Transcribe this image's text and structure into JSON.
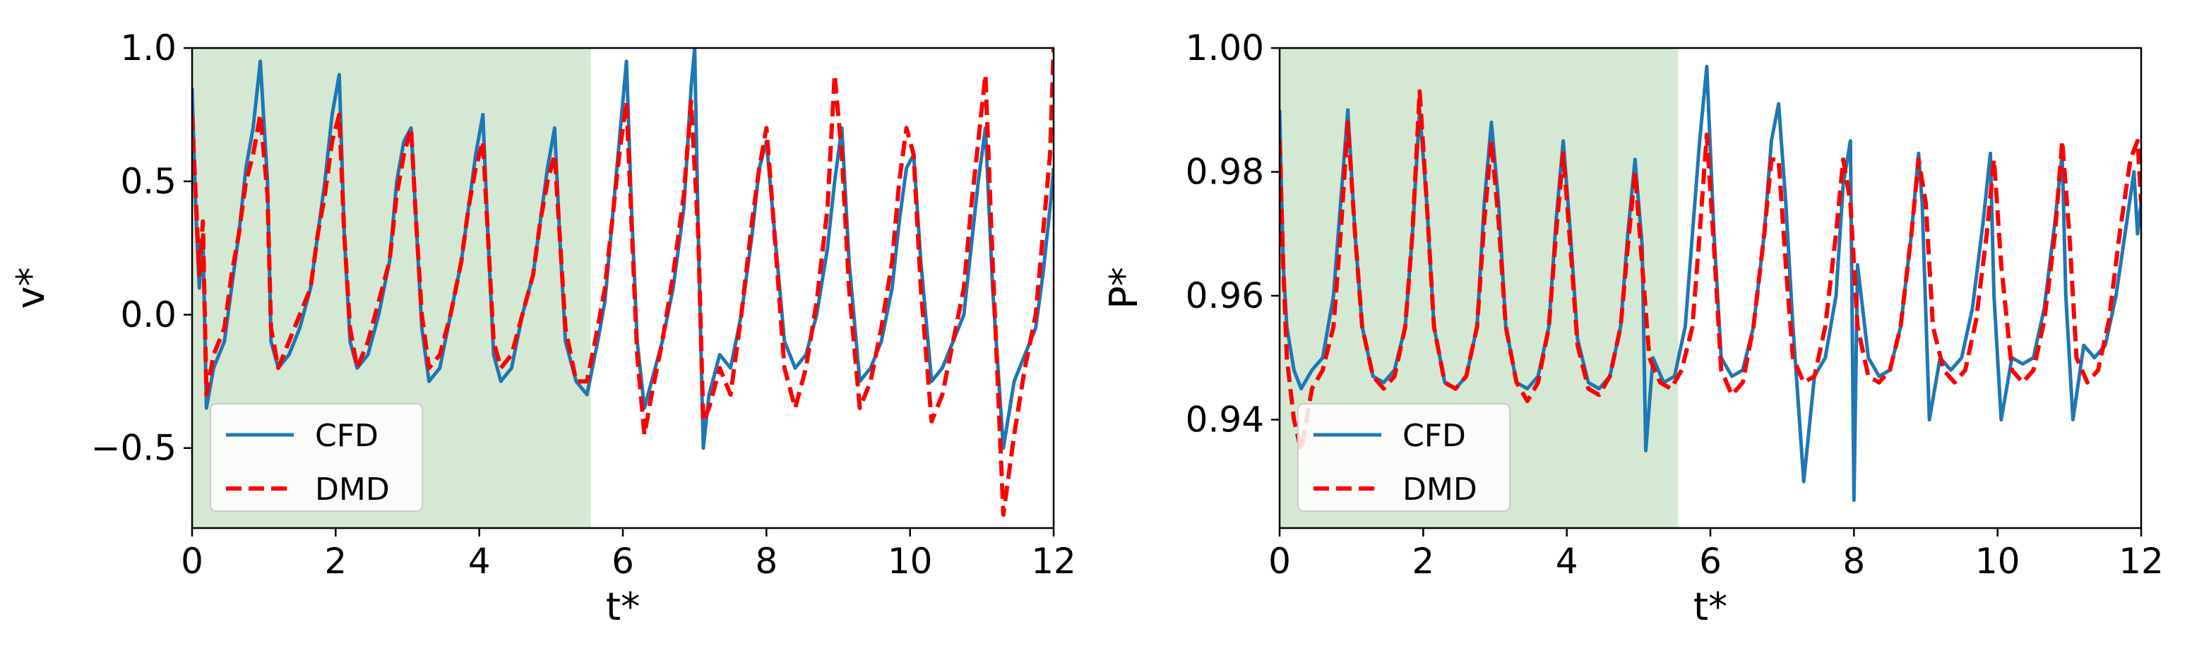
{
  "chart_data": [
    {
      "type": "line",
      "xlabel": "t*",
      "ylabel": "v*",
      "xlim": [
        0,
        12
      ],
      "ylim": [
        -0.8,
        1.0
      ],
      "xticks": [
        0,
        2,
        4,
        6,
        8,
        10,
        12
      ],
      "xtick_labels": [
        "0",
        "2",
        "4",
        "6",
        "8",
        "10",
        "12"
      ],
      "yticks": [
        -0.5,
        0.0,
        0.5,
        1.0
      ],
      "ytick_labels": [
        "−0.5",
        "0.0",
        "0.5",
        "1.0"
      ],
      "training_region": [
        0,
        5.55
      ],
      "training_region_color": "#d5e8d4",
      "legend": {
        "position": "lower-left",
        "entries": [
          "CFD",
          "DMD"
        ]
      },
      "series": [
        {
          "name": "CFD",
          "style": "solid",
          "color": "#1f77b4",
          "x": [
            0.0,
            0.05,
            0.1,
            0.15,
            0.2,
            0.3,
            0.45,
            0.55,
            0.65,
            0.75,
            0.85,
            0.95,
            1.05,
            1.1,
            1.2,
            1.35,
            1.5,
            1.65,
            1.75,
            1.85,
            1.95,
            2.05,
            2.12,
            2.2,
            2.3,
            2.45,
            2.6,
            2.75,
            2.85,
            2.95,
            3.05,
            3.12,
            3.2,
            3.3,
            3.45,
            3.6,
            3.75,
            3.85,
            3.95,
            4.05,
            4.12,
            4.2,
            4.3,
            4.45,
            4.6,
            4.75,
            4.85,
            4.95,
            5.05,
            5.12,
            5.2,
            5.35,
            5.5,
            5.65,
            5.75,
            5.85,
            5.95,
            6.05,
            6.12,
            6.2,
            6.3,
            6.4,
            6.55,
            6.7,
            6.85,
            6.95,
            7.0,
            7.05,
            7.12,
            7.2,
            7.35,
            7.5,
            7.65,
            7.8,
            7.9,
            8.0,
            8.1,
            8.25,
            8.4,
            8.55,
            8.7,
            8.85,
            8.95,
            9.05,
            9.15,
            9.3,
            9.45,
            9.6,
            9.75,
            9.85,
            9.95,
            10.05,
            10.15,
            10.3,
            10.45,
            10.6,
            10.75,
            10.85,
            10.95,
            11.05,
            11.15,
            11.3,
            11.45,
            11.6,
            11.75,
            11.85,
            11.95,
            12.0
          ],
          "y": [
            0.85,
            0.4,
            0.1,
            0.3,
            -0.35,
            -0.2,
            -0.1,
            0.1,
            0.3,
            0.55,
            0.7,
            0.95,
            0.5,
            -0.1,
            -0.2,
            -0.15,
            -0.05,
            0.1,
            0.3,
            0.5,
            0.75,
            0.9,
            0.3,
            -0.1,
            -0.2,
            -0.15,
            0.0,
            0.2,
            0.5,
            0.65,
            0.7,
            0.35,
            -0.05,
            -0.25,
            -0.2,
            0.0,
            0.2,
            0.4,
            0.6,
            0.75,
            0.3,
            -0.15,
            -0.25,
            -0.2,
            0.0,
            0.15,
            0.35,
            0.55,
            0.7,
            0.3,
            -0.1,
            -0.25,
            -0.3,
            -0.1,
            0.05,
            0.35,
            0.65,
            0.95,
            0.4,
            -0.1,
            -0.35,
            -0.25,
            -0.1,
            0.1,
            0.4,
            0.85,
            1.0,
            0.3,
            -0.5,
            -0.3,
            -0.15,
            -0.2,
            0.0,
            0.3,
            0.55,
            0.65,
            0.35,
            -0.1,
            -0.2,
            -0.15,
            0.0,
            0.25,
            0.5,
            0.7,
            0.2,
            -0.25,
            -0.2,
            -0.1,
            0.1,
            0.35,
            0.55,
            0.6,
            0.2,
            -0.25,
            -0.2,
            -0.1,
            0.0,
            0.25,
            0.5,
            0.7,
            0.1,
            -0.5,
            -0.25,
            -0.15,
            -0.05,
            0.15,
            0.4,
            0.55
          ]
        },
        {
          "name": "DMD",
          "style": "dashed",
          "color": "#ff0000",
          "x": [
            0.0,
            0.05,
            0.1,
            0.15,
            0.2,
            0.3,
            0.45,
            0.55,
            0.65,
            0.75,
            0.85,
            0.95,
            1.05,
            1.1,
            1.2,
            1.35,
            1.5,
            1.65,
            1.75,
            1.85,
            1.95,
            2.05,
            2.12,
            2.2,
            2.3,
            2.45,
            2.6,
            2.75,
            2.85,
            2.95,
            3.05,
            3.12,
            3.2,
            3.3,
            3.45,
            3.6,
            3.75,
            3.85,
            3.95,
            4.05,
            4.12,
            4.2,
            4.3,
            4.45,
            4.6,
            4.75,
            4.85,
            4.95,
            5.05,
            5.12,
            5.2,
            5.35,
            5.5,
            5.65,
            5.75,
            5.85,
            5.95,
            6.05,
            6.12,
            6.2,
            6.3,
            6.4,
            6.55,
            6.7,
            6.85,
            6.95,
            7.05,
            7.12,
            7.2,
            7.35,
            7.5,
            7.65,
            7.8,
            7.9,
            8.0,
            8.1,
            8.25,
            8.4,
            8.55,
            8.7,
            8.85,
            8.95,
            9.05,
            9.15,
            9.3,
            9.45,
            9.6,
            9.75,
            9.85,
            9.95,
            10.05,
            10.15,
            10.3,
            10.45,
            10.6,
            10.75,
            10.85,
            10.95,
            11.05,
            11.15,
            11.3,
            11.45,
            11.6,
            11.75,
            11.85,
            11.95,
            12.0
          ],
          "y": [
            0.75,
            0.45,
            0.15,
            0.35,
            -0.3,
            -0.15,
            -0.05,
            0.15,
            0.3,
            0.5,
            0.6,
            0.75,
            0.45,
            -0.05,
            -0.2,
            -0.1,
            0.0,
            0.1,
            0.3,
            0.45,
            0.65,
            0.75,
            0.3,
            -0.05,
            -0.2,
            -0.1,
            0.05,
            0.2,
            0.45,
            0.6,
            0.7,
            0.35,
            0.0,
            -0.2,
            -0.15,
            0.0,
            0.2,
            0.4,
            0.55,
            0.65,
            0.3,
            -0.1,
            -0.2,
            -0.15,
            0.0,
            0.15,
            0.35,
            0.5,
            0.6,
            0.3,
            -0.05,
            -0.25,
            -0.25,
            -0.05,
            0.1,
            0.35,
            0.6,
            0.8,
            0.35,
            -0.15,
            -0.45,
            -0.3,
            -0.1,
            0.15,
            0.45,
            0.8,
            0.3,
            -0.4,
            -0.35,
            -0.2,
            -0.3,
            0.0,
            0.35,
            0.55,
            0.7,
            0.35,
            -0.2,
            -0.35,
            -0.2,
            0.05,
            0.4,
            0.9,
            0.6,
            0.1,
            -0.35,
            -0.25,
            -0.05,
            0.2,
            0.5,
            0.7,
            0.6,
            0.1,
            -0.4,
            -0.3,
            -0.1,
            0.1,
            0.4,
            0.65,
            0.9,
            0.2,
            -0.75,
            -0.45,
            -0.2,
            0.0,
            0.3,
            0.6,
            1.0
          ]
        }
      ]
    },
    {
      "type": "line",
      "xlabel": "t*",
      "ylabel": "P*",
      "xlim": [
        0,
        12
      ],
      "ylim": [
        0.9225,
        1.0
      ],
      "xticks": [
        0,
        2,
        4,
        6,
        8,
        10,
        12
      ],
      "xtick_labels": [
        "0",
        "2",
        "4",
        "6",
        "8",
        "10",
        "12"
      ],
      "yticks": [
        0.94,
        0.96,
        0.98,
        1.0
      ],
      "ytick_labels": [
        "0.94",
        "0.96",
        "0.98",
        "1.00"
      ],
      "training_region": [
        0,
        5.55
      ],
      "training_region_color": "#d5e8d4",
      "legend": {
        "position": "lower-left",
        "entries": [
          "CFD",
          "DMD"
        ]
      },
      "series": [
        {
          "name": "CFD",
          "style": "solid",
          "color": "#1f77b4",
          "x": [
            0.0,
            0.05,
            0.1,
            0.2,
            0.3,
            0.45,
            0.6,
            0.75,
            0.85,
            0.95,
            1.05,
            1.15,
            1.3,
            1.45,
            1.6,
            1.75,
            1.85,
            1.95,
            2.05,
            2.15,
            2.3,
            2.45,
            2.6,
            2.75,
            2.85,
            2.95,
            3.05,
            3.15,
            3.3,
            3.45,
            3.6,
            3.75,
            3.85,
            3.95,
            4.05,
            4.15,
            4.3,
            4.45,
            4.6,
            4.75,
            4.85,
            4.95,
            5.05,
            5.1,
            5.2,
            5.35,
            5.5,
            5.65,
            5.75,
            5.85,
            5.95,
            6.05,
            6.15,
            6.3,
            6.45,
            6.6,
            6.75,
            6.85,
            6.95,
            7.05,
            7.15,
            7.3,
            7.45,
            7.6,
            7.75,
            7.85,
            7.95,
            8.0,
            8.05,
            8.2,
            8.35,
            8.5,
            8.65,
            8.8,
            8.9,
            8.95,
            9.05,
            9.2,
            9.35,
            9.5,
            9.65,
            9.8,
            9.9,
            9.95,
            10.05,
            10.2,
            10.35,
            10.5,
            10.65,
            10.8,
            10.9,
            10.95,
            11.05,
            11.2,
            11.35,
            11.5,
            11.65,
            11.8,
            11.9,
            11.95,
            12.0
          ],
          "y": [
            0.99,
            0.965,
            0.955,
            0.948,
            0.945,
            0.948,
            0.95,
            0.96,
            0.975,
            0.99,
            0.97,
            0.955,
            0.947,
            0.946,
            0.948,
            0.955,
            0.97,
            0.99,
            0.975,
            0.955,
            0.946,
            0.945,
            0.947,
            0.955,
            0.975,
            0.988,
            0.975,
            0.955,
            0.946,
            0.945,
            0.947,
            0.955,
            0.972,
            0.985,
            0.97,
            0.953,
            0.946,
            0.945,
            0.947,
            0.955,
            0.97,
            0.982,
            0.968,
            0.935,
            0.95,
            0.946,
            0.947,
            0.955,
            0.97,
            0.985,
            0.997,
            0.97,
            0.95,
            0.947,
            0.948,
            0.955,
            0.97,
            0.985,
            0.991,
            0.975,
            0.955,
            0.93,
            0.947,
            0.95,
            0.96,
            0.978,
            0.985,
            0.927,
            0.965,
            0.95,
            0.947,
            0.948,
            0.955,
            0.97,
            0.983,
            0.975,
            0.94,
            0.95,
            0.948,
            0.95,
            0.958,
            0.972,
            0.983,
            0.96,
            0.94,
            0.95,
            0.949,
            0.95,
            0.958,
            0.972,
            0.983,
            0.96,
            0.94,
            0.952,
            0.95,
            0.952,
            0.96,
            0.972,
            0.98,
            0.97,
            0.975
          ]
        },
        {
          "name": "DMD",
          "style": "dashed",
          "color": "#ff0000",
          "x": [
            0.0,
            0.05,
            0.1,
            0.2,
            0.3,
            0.45,
            0.6,
            0.75,
            0.85,
            0.95,
            1.05,
            1.15,
            1.3,
            1.45,
            1.6,
            1.75,
            1.85,
            1.95,
            2.05,
            2.15,
            2.3,
            2.45,
            2.6,
            2.75,
            2.85,
            2.95,
            3.05,
            3.15,
            3.3,
            3.45,
            3.6,
            3.75,
            3.85,
            3.95,
            4.05,
            4.15,
            4.3,
            4.45,
            4.6,
            4.75,
            4.85,
            4.95,
            5.05,
            5.15,
            5.3,
            5.45,
            5.6,
            5.75,
            5.85,
            5.95,
            6.05,
            6.15,
            6.3,
            6.45,
            6.6,
            6.75,
            6.85,
            6.95,
            7.05,
            7.15,
            7.3,
            7.45,
            7.6,
            7.75,
            7.85,
            7.95,
            8.05,
            8.2,
            8.35,
            8.5,
            8.65,
            8.8,
            8.9,
            9.0,
            9.1,
            9.25,
            9.4,
            9.55,
            9.7,
            9.85,
            9.95,
            10.05,
            10.2,
            10.35,
            10.5,
            10.65,
            10.8,
            10.9,
            11.0,
            11.1,
            11.25,
            11.4,
            11.55,
            11.7,
            11.85,
            11.95,
            12.0
          ],
          "y": [
            0.985,
            0.965,
            0.95,
            0.94,
            0.935,
            0.945,
            0.948,
            0.955,
            0.97,
            0.988,
            0.97,
            0.955,
            0.947,
            0.945,
            0.947,
            0.955,
            0.97,
            0.993,
            0.975,
            0.955,
            0.946,
            0.945,
            0.947,
            0.955,
            0.972,
            0.985,
            0.972,
            0.955,
            0.946,
            0.943,
            0.946,
            0.955,
            0.97,
            0.983,
            0.968,
            0.952,
            0.945,
            0.944,
            0.947,
            0.955,
            0.968,
            0.98,
            0.965,
            0.95,
            0.946,
            0.945,
            0.948,
            0.955,
            0.97,
            0.986,
            0.968,
            0.948,
            0.944,
            0.946,
            0.955,
            0.97,
            0.982,
            0.982,
            0.965,
            0.95,
            0.946,
            0.947,
            0.955,
            0.97,
            0.982,
            0.975,
            0.955,
            0.947,
            0.946,
            0.948,
            0.955,
            0.97,
            0.982,
            0.975,
            0.955,
            0.948,
            0.946,
            0.948,
            0.956,
            0.97,
            0.982,
            0.965,
            0.948,
            0.946,
            0.948,
            0.956,
            0.97,
            0.985,
            0.97,
            0.95,
            0.946,
            0.948,
            0.956,
            0.97,
            0.982,
            0.985,
            0.975
          ]
        }
      ]
    }
  ]
}
